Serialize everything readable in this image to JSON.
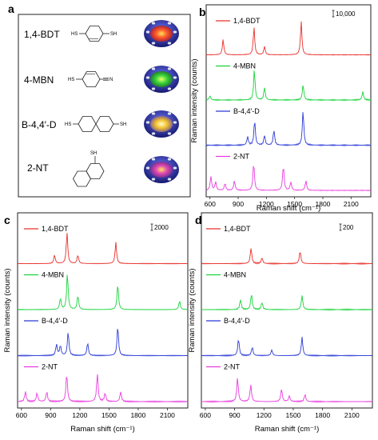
{
  "panel_labels": {
    "a": "a",
    "b": "b",
    "c": "c",
    "d": "d"
  },
  "panel_a": {
    "rows": [
      {
        "name": "1,4-BDT",
        "sh_left": "HS",
        "sh_right": "SH",
        "gradient": "np-red"
      },
      {
        "name": "4-MBN",
        "sh_left": "HS",
        "sh_right": "N",
        "gradient": "np-green"
      },
      {
        "name": "B-4,4′-D",
        "sh_left": "HS",
        "sh_right": "SH",
        "gradient": "np-yellow"
      },
      {
        "name": "2-NT",
        "sh_left": "SH",
        "sh_right": "",
        "gradient": "np-purple"
      }
    ]
  },
  "chart_data": [
    {
      "panel": "b",
      "type": "line",
      "xlabel": "Raman shift (cm⁻¹)",
      "ylabel": "Raman intensity (counts)",
      "xlim": [
        560,
        2310
      ],
      "xticks": [
        600,
        900,
        1200,
        1500,
        1800,
        2100
      ],
      "scale_bar": "10,000",
      "series": [
        {
          "name": "1,4-BDT",
          "color": "#e8302a",
          "peaks": [
            [
              740,
              0.55
            ],
            [
              1068,
              1.0
            ],
            [
              1180,
              0.3
            ],
            [
              1570,
              1.2
            ]
          ]
        },
        {
          "name": "4-MBN",
          "color": "#19d33a",
          "peaks": [
            [
              600,
              0.15
            ],
            [
              1072,
              1.1
            ],
            [
              1180,
              0.45
            ],
            [
              1590,
              0.55
            ],
            [
              2225,
              0.3
            ]
          ]
        },
        {
          "name": "B-4,4′-D",
          "color": "#2b3bd6",
          "peaks": [
            [
              1000,
              0.3
            ],
            [
              1075,
              0.9
            ],
            [
              1180,
              0.35
            ],
            [
              1280,
              0.55
            ],
            [
              1590,
              1.25
            ]
          ]
        },
        {
          "name": "2-NT",
          "color": "#e83ce0",
          "peaks": [
            [
              610,
              0.5
            ],
            [
              660,
              0.3
            ],
            [
              760,
              0.25
            ],
            [
              860,
              0.35
            ],
            [
              1065,
              1.0
            ],
            [
              1380,
              0.9
            ],
            [
              1460,
              0.3
            ],
            [
              1620,
              0.35
            ]
          ]
        }
      ]
    },
    {
      "panel": "c",
      "type": "line",
      "xlabel": "Raman shift (cm⁻¹)",
      "ylabel": "Raman intensity (counts)",
      "xlim": [
        560,
        2310
      ],
      "xticks": [
        600,
        900,
        1200,
        1500,
        1800,
        2100
      ],
      "scale_bar": "2000",
      "series": [
        {
          "name": "1,4-BDT",
          "color": "#e8302a",
          "peaks": [
            [
              940,
              0.3
            ],
            [
              1068,
              1.1
            ],
            [
              1180,
              0.3
            ],
            [
              1570,
              0.75
            ]
          ]
        },
        {
          "name": "4-MBN",
          "color": "#19d33a",
          "peaks": [
            [
              1000,
              0.4
            ],
            [
              1072,
              1.3
            ],
            [
              1180,
              0.5
            ],
            [
              1590,
              0.9
            ],
            [
              2225,
              0.3
            ]
          ]
        },
        {
          "name": "B-4,4′-D",
          "color": "#2b3bd6",
          "peaks": [
            [
              960,
              0.4
            ],
            [
              1000,
              0.35
            ],
            [
              1080,
              0.85
            ],
            [
              1280,
              0.45
            ],
            [
              1590,
              1.05
            ]
          ]
        },
        {
          "name": "2-NT",
          "color": "#e83ce0",
          "peaks": [
            [
              640,
              0.35
            ],
            [
              760,
              0.3
            ],
            [
              860,
              0.35
            ],
            [
              1065,
              1.0
            ],
            [
              1380,
              1.0
            ],
            [
              1460,
              0.3
            ],
            [
              1620,
              0.35
            ]
          ]
        }
      ]
    },
    {
      "panel": "d",
      "type": "line",
      "xlabel": "Raman shift (cm⁻¹)",
      "ylabel": "Raman intensity (counts)",
      "xlim": [
        560,
        2310
      ],
      "xticks": [
        600,
        900,
        1200,
        1500,
        1800,
        2100
      ],
      "scale_bar": "200",
      "series": [
        {
          "name": "1,4-BDT",
          "color": "#e8302a",
          "peaks": [
            [
              1068,
              0.55
            ],
            [
              1180,
              0.2
            ],
            [
              1570,
              0.45
            ]
          ]
        },
        {
          "name": "4-MBN",
          "color": "#19d33a",
          "peaks": [
            [
              960,
              0.35
            ],
            [
              1072,
              0.55
            ],
            [
              1180,
              0.25
            ],
            [
              1590,
              0.5
            ]
          ]
        },
        {
          "name": "B-4,4′-D",
          "color": "#2b3bd6",
          "peaks": [
            [
              940,
              0.6
            ],
            [
              1080,
              0.3
            ],
            [
              1280,
              0.2
            ],
            [
              1590,
              0.65
            ]
          ]
        },
        {
          "name": "2-NT",
          "color": "#e83ce0",
          "peaks": [
            [
              930,
              0.85
            ],
            [
              1065,
              0.6
            ],
            [
              1380,
              0.45
            ],
            [
              1460,
              0.2
            ],
            [
              1620,
              0.25
            ]
          ]
        }
      ]
    }
  ]
}
